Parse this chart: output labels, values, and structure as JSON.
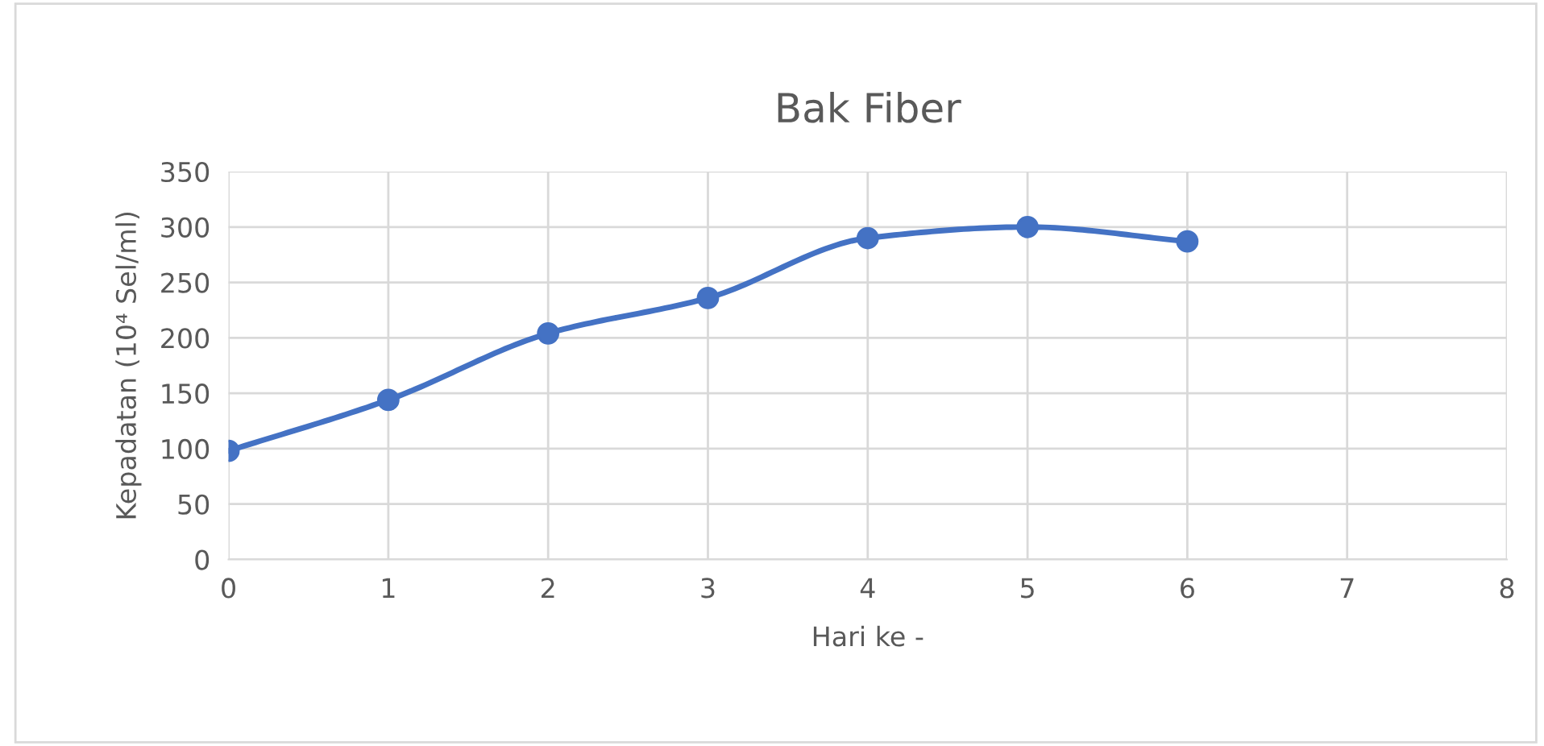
{
  "chart_data": {
    "type": "line",
    "title": "Bak Fiber",
    "xlabel": "Hari ke -",
    "ylabel": "Kepadatan (10⁴ Sel/ml)",
    "x": [
      0,
      1,
      2,
      3,
      4,
      5,
      6
    ],
    "series": [
      {
        "color": "#4472c4",
        "values": [
          98,
          144,
          204,
          236,
          290,
          300,
          287
        ]
      }
    ],
    "xlim": [
      0,
      8
    ],
    "xticks": [
      0,
      1,
      2,
      3,
      4,
      5,
      6,
      7,
      8
    ],
    "ylim": [
      0,
      350
    ],
    "yticks": [
      0,
      50,
      100,
      150,
      200,
      250,
      300,
      350
    ],
    "grid": true,
    "marker": "circle",
    "line_style": "solid"
  }
}
